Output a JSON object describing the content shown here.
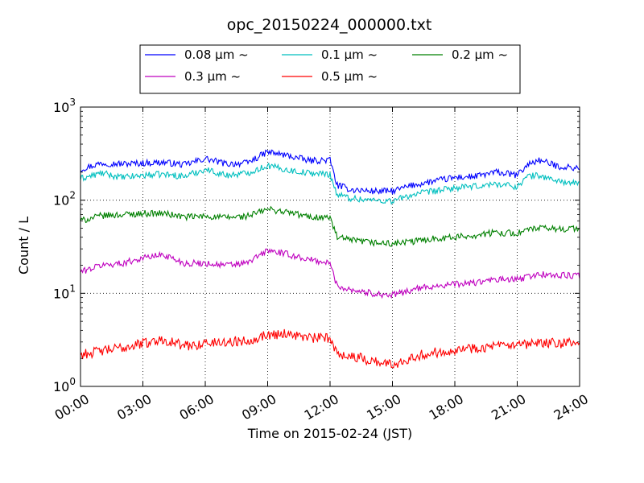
{
  "chart_data": {
    "type": "line",
    "title": "opc_20150224_000000.txt",
    "xlabel": "Time on 2015-02-24 (JST)",
    "ylabel": "Count / L",
    "yscale": "log",
    "xlim": [
      "00:00",
      "24:00"
    ],
    "ylim": [
      1,
      1000
    ],
    "grid": true,
    "legend_position": "top-center",
    "x_ticks": [
      "00:00",
      "03:00",
      "06:00",
      "09:00",
      "12:00",
      "15:00",
      "18:00",
      "21:00",
      "24:00"
    ],
    "y_ticks": [
      {
        "value": 1,
        "base": "10",
        "exp": "0"
      },
      {
        "value": 10,
        "base": "10",
        "exp": "1"
      },
      {
        "value": 100,
        "base": "10",
        "exp": "2"
      },
      {
        "value": 1000,
        "base": "10",
        "exp": "3"
      }
    ],
    "x": [
      "00:00",
      "01:00",
      "02:00",
      "03:00",
      "04:00",
      "05:00",
      "06:00",
      "07:00",
      "08:00",
      "09:00",
      "10:00",
      "11:00",
      "12:00",
      "12:20",
      "13:00",
      "14:00",
      "15:00",
      "16:00",
      "17:00",
      "18:00",
      "19:00",
      "20:00",
      "21:00",
      "21:30",
      "22:00",
      "23:00",
      "24:00"
    ],
    "series": [
      {
        "name": "0.08 μm ~",
        "color": "#0000ff",
        "values": [
          215,
          250,
          245,
          250,
          255,
          240,
          280,
          245,
          250,
          330,
          300,
          265,
          270,
          145,
          130,
          125,
          125,
          145,
          160,
          175,
          180,
          200,
          185,
          240,
          270,
          230,
          220
        ]
      },
      {
        "name": "0.1 μm ~",
        "color": "#00bfbf",
        "values": [
          170,
          195,
          175,
          185,
          190,
          180,
          215,
          185,
          195,
          235,
          210,
          195,
          190,
          115,
          105,
          100,
          98,
          115,
          125,
          135,
          140,
          150,
          140,
          180,
          185,
          160,
          148
        ]
      },
      {
        "name": "0.2 μm ~",
        "color": "#008000",
        "values": [
          60,
          68,
          70,
          72,
          72,
          66,
          67,
          65,
          67,
          80,
          74,
          66,
          65,
          40,
          37,
          35,
          34,
          36,
          39,
          40,
          42,
          45,
          44,
          48,
          50,
          49,
          50
        ]
      },
      {
        "name": "0.3 μm ~",
        "color": "#bf00bf",
        "values": [
          17,
          20,
          21,
          24,
          26,
          21,
          21,
          20,
          21,
          29,
          26,
          23,
          21,
          12,
          11,
          10,
          9.5,
          11,
          12,
          12.5,
          13,
          14,
          14,
          15,
          16,
          15.5,
          15.5
        ]
      },
      {
        "name": "0.5 μm ~",
        "color": "#ff0000",
        "values": [
          2.2,
          2.4,
          2.6,
          2.9,
          3.2,
          2.7,
          2.9,
          3.0,
          3.1,
          3.6,
          3.7,
          3.3,
          3.3,
          2.3,
          2.1,
          1.9,
          1.7,
          2.1,
          2.3,
          2.5,
          2.6,
          2.7,
          2.7,
          2.8,
          2.9,
          2.9,
          2.9
        ]
      }
    ]
  }
}
